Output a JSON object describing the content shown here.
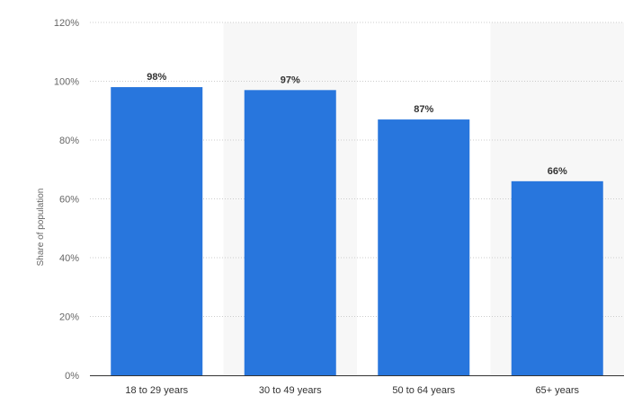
{
  "chart_data": {
    "type": "bar",
    "title": "",
    "xlabel": "",
    "ylabel": "Share of population",
    "categories": [
      "18 to 29 years",
      "30 to 49 years",
      "50 to 64 years",
      "65+ years"
    ],
    "values": [
      98,
      97,
      87,
      66
    ],
    "value_labels": [
      "98%",
      "97%",
      "87%",
      "66%"
    ],
    "ylim": [
      0,
      120
    ],
    "yticks": [
      0,
      20,
      40,
      60,
      80,
      100,
      120
    ],
    "ytick_labels": [
      "0%",
      "20%",
      "40%",
      "60%",
      "80%",
      "100%",
      "120%"
    ],
    "grid": true,
    "legend": "none",
    "colors": {
      "bar": "#2876dd",
      "band": "#f7f7f7",
      "grid": "#cccccc",
      "axis": "#333333"
    }
  }
}
